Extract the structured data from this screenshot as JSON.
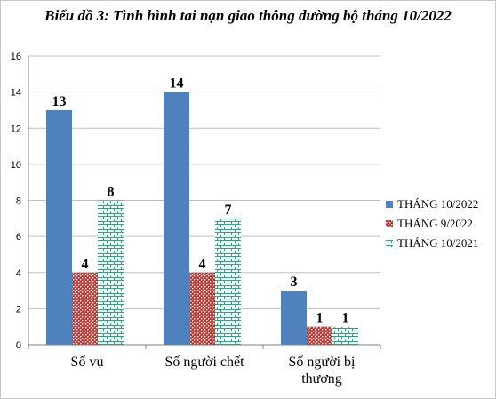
{
  "chart_data": {
    "type": "bar",
    "title": "Biểu đồ 3: Tình hình tai nạn giao thông đường bộ tháng 10/2022",
    "categories": [
      [
        "Số vụ"
      ],
      [
        "Số người chết"
      ],
      [
        "Số người bị",
        "thương"
      ]
    ],
    "series": [
      {
        "name": "THÁNG 10/2022",
        "values": [
          13,
          14,
          3
        ],
        "color": "#4f81bd",
        "pattern": "solid"
      },
      {
        "name": "THÁNG 9/2022",
        "values": [
          4,
          4,
          1
        ],
        "color": "#e8231c",
        "pattern": "dots"
      },
      {
        "name": "THÁNG 10/2021",
        "values": [
          8,
          7,
          1
        ],
        "color": "#9bd3c0",
        "pattern": "bricks"
      }
    ],
    "ylim": [
      0,
      16
    ],
    "yticks": [
      0,
      2,
      4,
      6,
      8,
      10,
      12,
      14,
      16
    ],
    "grid": true,
    "legend_position": "right",
    "xlabel": "",
    "ylabel": ""
  }
}
